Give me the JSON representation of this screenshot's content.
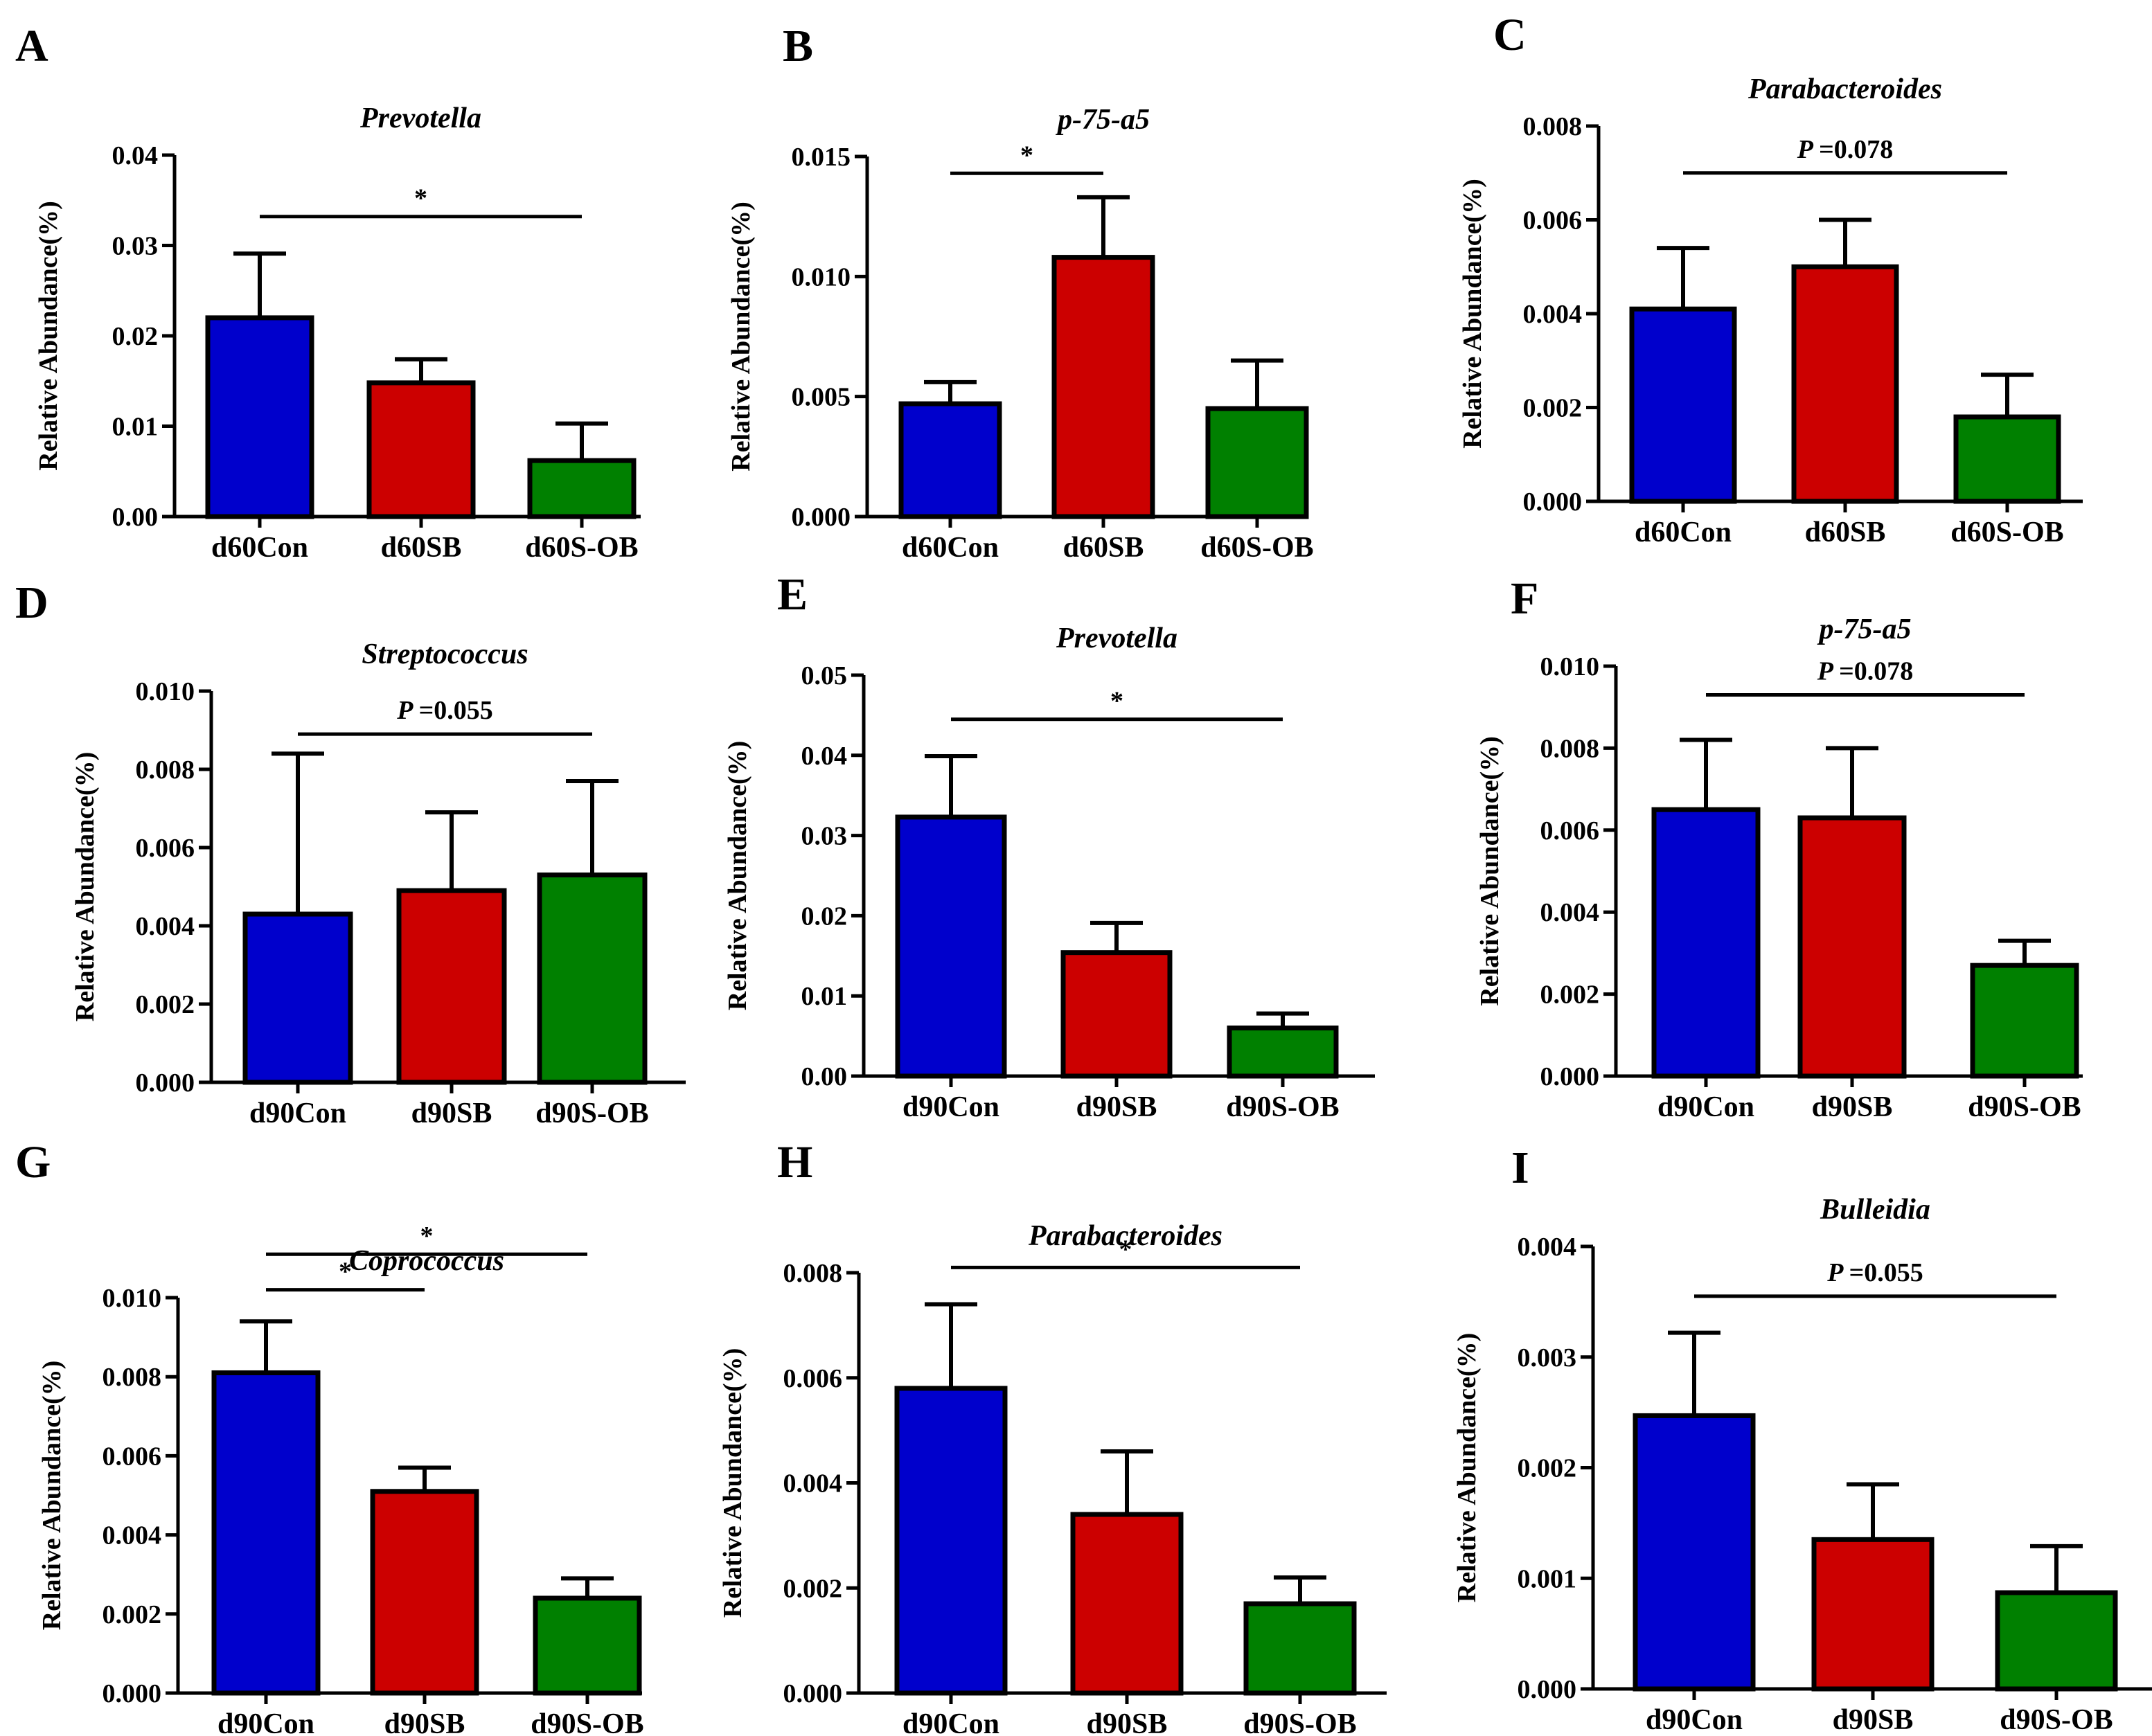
{
  "figure": {
    "colors": {
      "blue": "#0000cc",
      "red": "#cc0000",
      "green": "#008000",
      "axis": "#000000"
    },
    "ylabel": "Relative Abundance(%)"
  },
  "chart_data": [
    {
      "panel": "A",
      "type": "bar",
      "title": "Prevotella",
      "ylabel": "Relative Abundance(%)",
      "categories": [
        "d60Con",
        "d60SB",
        "d60S-OB"
      ],
      "values": [
        0.022,
        0.0148,
        0.0062
      ],
      "errors": [
        0.0071,
        0.0026,
        0.0041
      ],
      "ylim": [
        0,
        0.04
      ],
      "yticks": [
        "0.00",
        "0.01",
        "0.02",
        "0.03",
        "0.04"
      ],
      "annotations": [
        {
          "from": 0,
          "to": 2,
          "label": "*",
          "y": 0.0332
        }
      ]
    },
    {
      "panel": "B",
      "type": "bar",
      "title": "p-75-a5",
      "ylabel": "Relative Abundance(%)",
      "categories": [
        "d60Con",
        "d60SB",
        "d60S-OB"
      ],
      "values": [
        0.0047,
        0.0108,
        0.0045
      ],
      "errors": [
        0.0009,
        0.0025,
        0.002
      ],
      "ylim": [
        0,
        0.015
      ],
      "yticks": [
        "0.000",
        "0.005",
        "0.010",
        "0.015"
      ],
      "annotations": [
        {
          "from": 0,
          "to": 1,
          "label": "*",
          "y": 0.0143
        }
      ]
    },
    {
      "panel": "C",
      "type": "bar",
      "title": "Parabacteroides",
      "ylabel": "Relative Abundance(%)",
      "categories": [
        "d60Con",
        "d60SB",
        "d60S-OB"
      ],
      "values": [
        0.0041,
        0.005,
        0.0018
      ],
      "errors": [
        0.0013,
        0.001,
        0.0009
      ],
      "ylim": [
        0,
        0.008
      ],
      "yticks": [
        "0.000",
        "0.002",
        "0.004",
        "0.006",
        "0.008"
      ],
      "annotations": [
        {
          "from": 0,
          "to": 2,
          "label": "P =0.078",
          "y": 0.007
        }
      ]
    },
    {
      "panel": "D",
      "type": "bar",
      "title": "Streptococcus",
      "ylabel": "Relative Abundance(%)",
      "categories": [
        "d90Con",
        "d90SB",
        "d90S-OB"
      ],
      "values": [
        0.0043,
        0.0049,
        0.0053
      ],
      "errors": [
        0.0041,
        0.002,
        0.0024
      ],
      "ylim": [
        0,
        0.01
      ],
      "yticks": [
        "0.000",
        "0.002",
        "0.004",
        "0.006",
        "0.008",
        "0.010"
      ],
      "annotations": [
        {
          "from": 0,
          "to": 2,
          "label": "P =0.055",
          "y": 0.0089
        }
      ]
    },
    {
      "panel": "E",
      "type": "bar",
      "title": "Prevotella",
      "ylabel": "Relative Abundance(%)",
      "categories": [
        "d90Con",
        "d90SB",
        "d90S-OB"
      ],
      "values": [
        0.0323,
        0.0154,
        0.006
      ],
      "errors": [
        0.0076,
        0.0037,
        0.0018
      ],
      "ylim": [
        0,
        0.05
      ],
      "yticks": [
        "0.00",
        "0.01",
        "0.02",
        "0.03",
        "0.04",
        "0.05"
      ],
      "annotations": [
        {
          "from": 0,
          "to": 2,
          "label": "*",
          "y": 0.0445
        }
      ]
    },
    {
      "panel": "F",
      "type": "bar",
      "title": "p-75-a5",
      "ylabel": "Relative Abundance(%)",
      "categories": [
        "d90Con",
        "d90SB",
        "d90S-OB"
      ],
      "values": [
        0.0065,
        0.0063,
        0.0027
      ],
      "errors": [
        0.0017,
        0.0017,
        0.0006
      ],
      "ylim": [
        0,
        0.01
      ],
      "yticks": [
        "0.000",
        "0.002",
        "0.004",
        "0.006",
        "0.008",
        "0.010"
      ],
      "annotations": [
        {
          "from": 0,
          "to": 2,
          "label": "P =0.078",
          "y": 0.0093
        }
      ]
    },
    {
      "panel": "G",
      "type": "bar",
      "title": "Coprococcus",
      "ylabel": "Relative Abundance(%)",
      "categories": [
        "d90Con",
        "d90SB",
        "d90S-OB"
      ],
      "values": [
        0.0081,
        0.0051,
        0.0024
      ],
      "errors": [
        0.0013,
        0.0006,
        0.0005
      ],
      "ylim": [
        0,
        0.01
      ],
      "yticks": [
        "0.000",
        "0.002",
        "0.004",
        "0.006",
        "0.008",
        "0.010"
      ],
      "annotations": [
        {
          "from": 0,
          "to": 1,
          "label": "*",
          "y": 0.0102
        },
        {
          "from": 0,
          "to": 2,
          "label": "*",
          "y": 0.0111
        }
      ]
    },
    {
      "panel": "H",
      "type": "bar",
      "title": "Parabacteroides",
      "ylabel": "Relative Abundance(%)",
      "categories": [
        "d90Con",
        "d90SB",
        "d90S-OB"
      ],
      "values": [
        0.0058,
        0.0034,
        0.0017
      ],
      "errors": [
        0.0016,
        0.0012,
        0.0005
      ],
      "ylim": [
        0,
        0.008
      ],
      "yticks": [
        "0.000",
        "0.002",
        "0.004",
        "0.006",
        "0.008"
      ],
      "annotations": [
        {
          "from": 0,
          "to": 2,
          "label": "*",
          "y": 0.0081
        }
      ]
    },
    {
      "panel": "I",
      "type": "bar",
      "title": "Bulleidia",
      "ylabel": "Relative Abundance(%)",
      "categories": [
        "d90Con",
        "d90SB",
        "d90S-OB"
      ],
      "values": [
        0.00247,
        0.00135,
        0.00087
      ],
      "errors": [
        0.00075,
        0.0005,
        0.00042
      ],
      "ylim": [
        0,
        0.004
      ],
      "yticks": [
        "0.000",
        "0.001",
        "0.002",
        "0.003",
        "0.004"
      ],
      "annotations": [
        {
          "from": 0,
          "to": 2,
          "label": "P =0.055",
          "y": 0.00355
        }
      ]
    }
  ]
}
